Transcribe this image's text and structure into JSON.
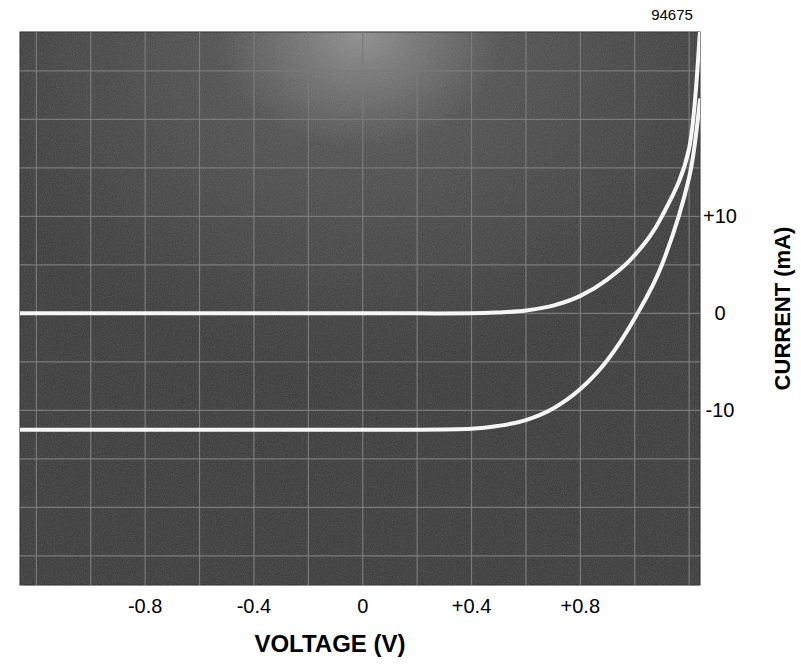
{
  "chart_data": {
    "type": "line",
    "x_label": "VOLTAGE (V)",
    "y_label": "CURRENT (mA)",
    "annotations": [
      "94675"
    ],
    "x": [
      -1.26,
      -0.8,
      -0.4,
      0,
      0.2,
      0.4,
      0.5,
      0.6,
      0.7,
      0.8,
      0.9,
      1.0,
      1.1,
      1.2,
      1.24
    ],
    "series": [
      {
        "color": "#ffffff",
        "values": [
          0,
          0,
          0,
          0,
          0,
          0,
          0.1,
          0.3,
          0.8,
          1.8,
          3.5,
          6,
          10,
          17,
          29
        ]
      },
      {
        "color": "#ffffff",
        "values": [
          -12,
          -12,
          -12,
          -12,
          -12,
          -11.9,
          -11.6,
          -11,
          -9.8,
          -7.8,
          -4.8,
          -0.5,
          5,
          14,
          22
        ]
      }
    ],
    "xlim": [
      -1.26,
      1.24
    ],
    "ylim": [
      -28,
      29
    ],
    "xticks": [
      -0.8,
      -0.4,
      0,
      {
        "value": 0.4,
        "label": "+0.4"
      },
      {
        "value": 0.8,
        "label": "+0.8"
      }
    ],
    "yticks": [
      -10,
      0,
      {
        "value": 10,
        "label": "+10"
      }
    ],
    "grid": true
  }
}
